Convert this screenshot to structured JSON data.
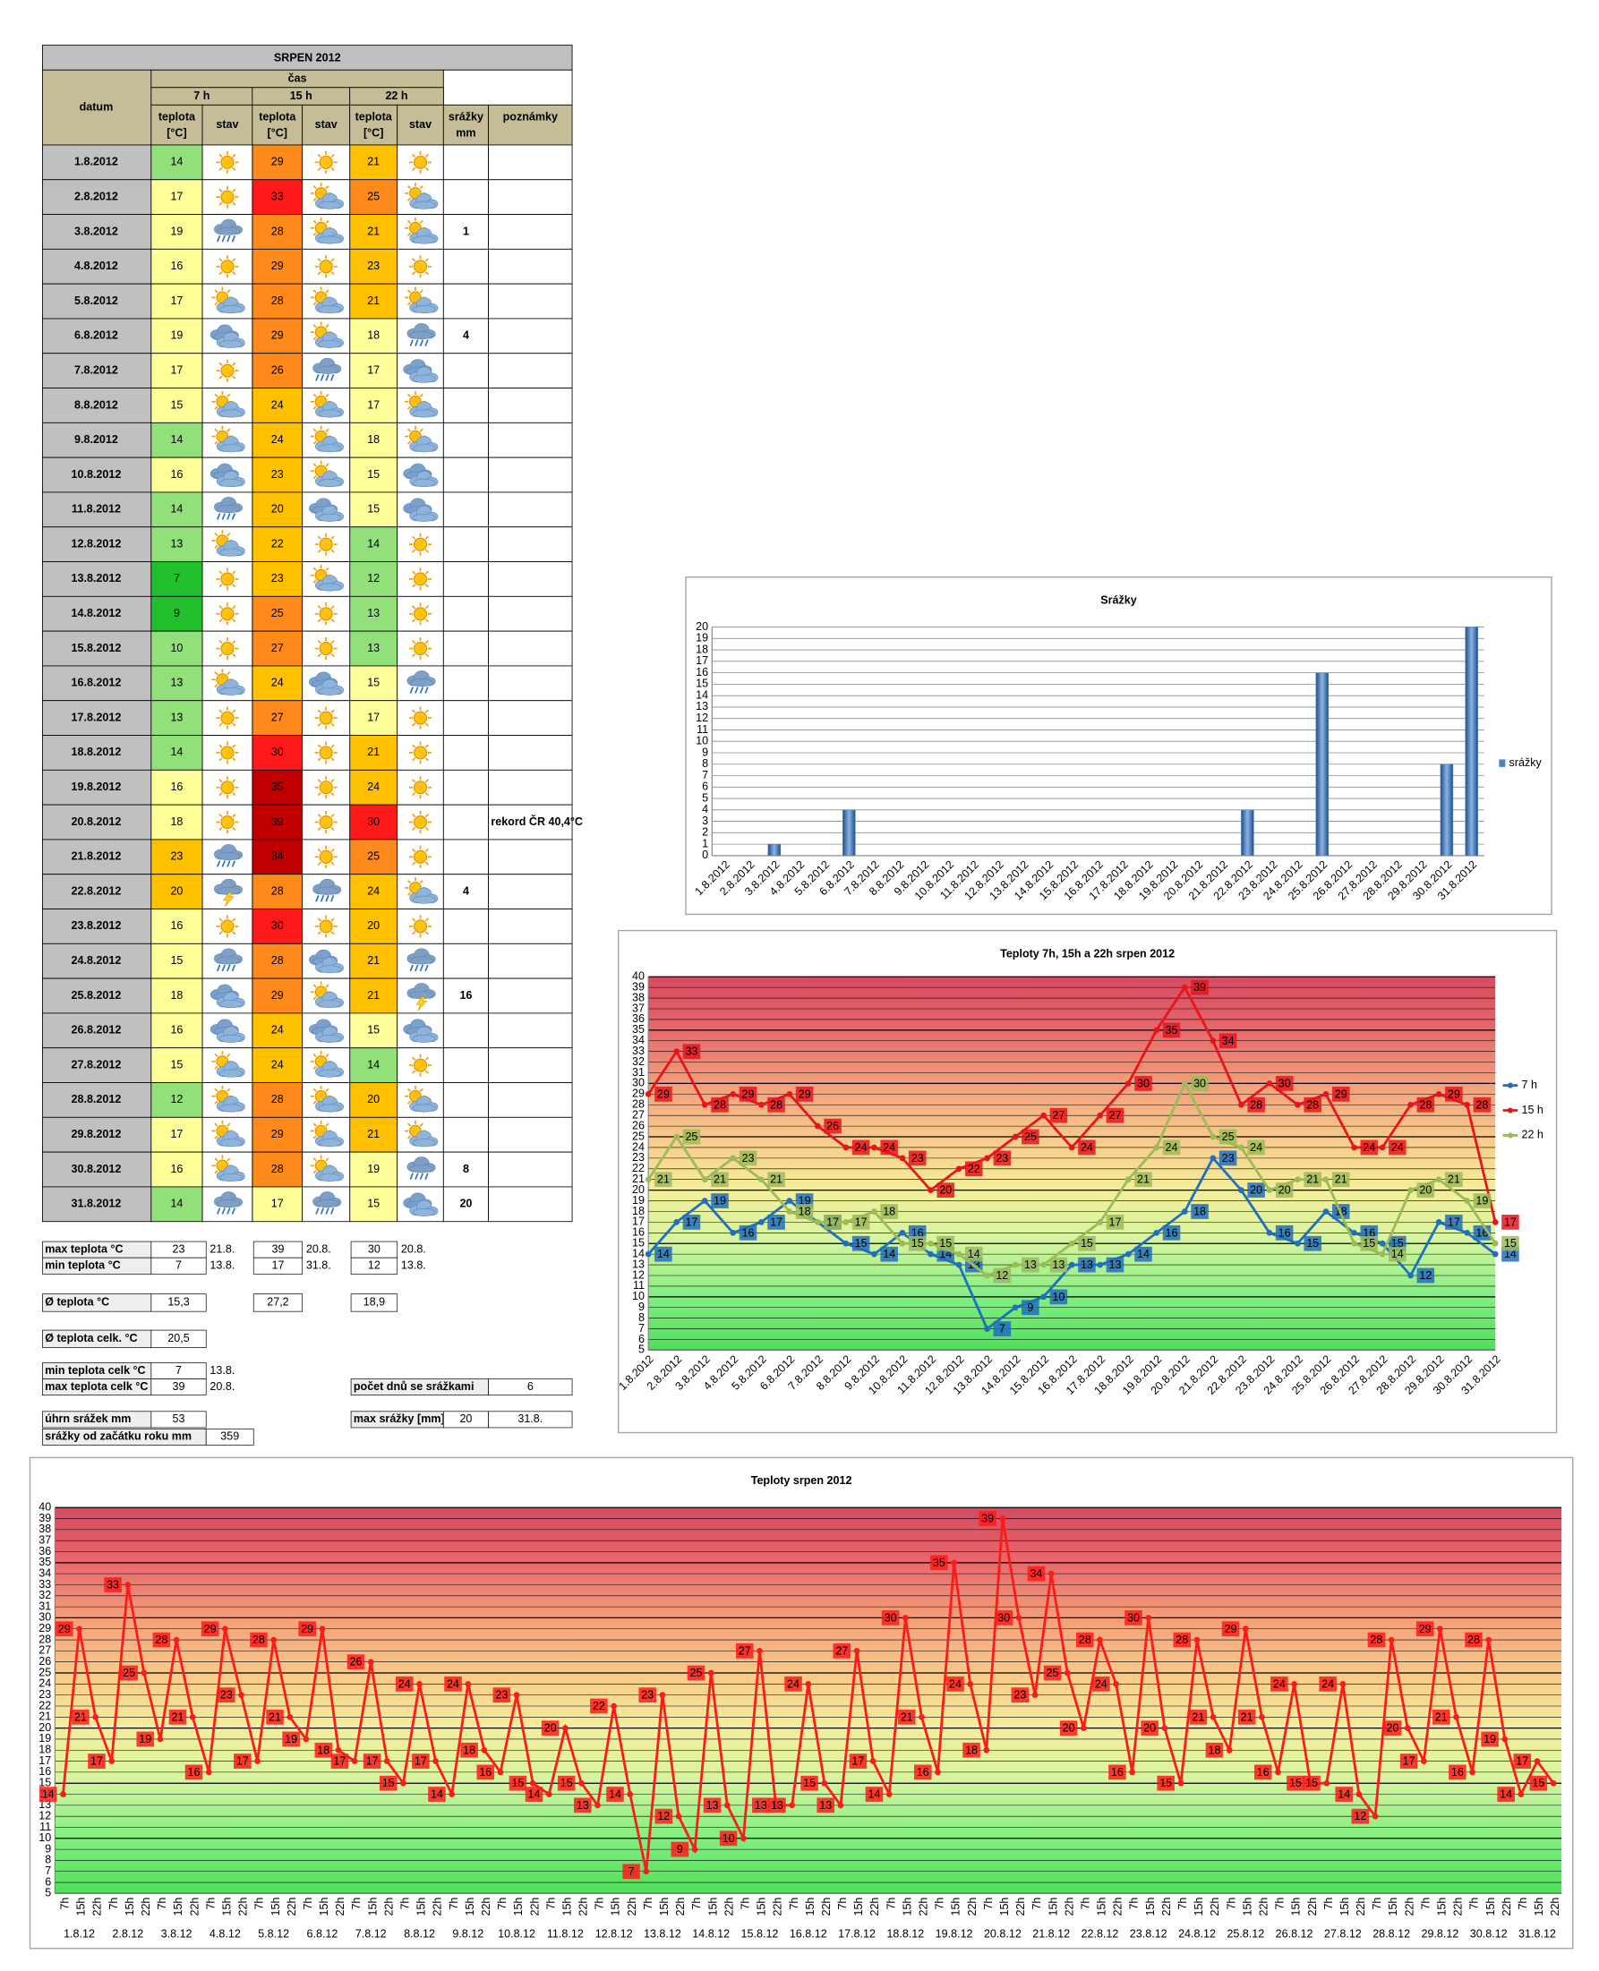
{
  "table": {
    "title": "SRPEN 2012",
    "header": {
      "datum": "datum",
      "cas": "čas",
      "times": [
        "7 h",
        "15 h",
        "22 h"
      ],
      "teplota": "teplota",
      "teplota_unit": "[°C]",
      "stav": "stav",
      "srazky": "srážky",
      "srazky_unit": "mm",
      "poznamky": "poznámky"
    },
    "rows": [
      [
        "1.8.2012",
        14,
        29,
        21,
        null,
        null
      ],
      [
        "2.8.2012",
        17,
        33,
        25,
        null,
        null
      ],
      [
        "3.8.2012",
        19,
        28,
        21,
        1,
        null
      ],
      [
        "4.8.2012",
        16,
        29,
        23,
        null,
        null
      ],
      [
        "5.8.2012",
        17,
        28,
        21,
        null,
        null
      ],
      [
        "6.8.2012",
        19,
        29,
        18,
        4,
        null
      ],
      [
        "7.8.2012",
        17,
        26,
        17,
        null,
        null
      ],
      [
        "8.8.2012",
        15,
        24,
        17,
        null,
        null
      ],
      [
        "9.8.2012",
        14,
        24,
        18,
        null,
        null
      ],
      [
        "10.8.2012",
        16,
        23,
        15,
        null,
        null
      ],
      [
        "11.8.2012",
        14,
        20,
        15,
        null,
        null
      ],
      [
        "12.8.2012",
        13,
        22,
        14,
        null,
        null
      ],
      [
        "13.8.2012",
        7,
        23,
        12,
        null,
        null
      ],
      [
        "14.8.2012",
        9,
        25,
        13,
        null,
        null
      ],
      [
        "15.8.2012",
        10,
        27,
        13,
        null,
        null
      ],
      [
        "16.8.2012",
        13,
        24,
        15,
        null,
        null
      ],
      [
        "17.8.2012",
        13,
        27,
        17,
        null,
        null
      ],
      [
        "18.8.2012",
        14,
        30,
        21,
        null,
        null
      ],
      [
        "19.8.2012",
        16,
        35,
        24,
        null,
        null
      ],
      [
        "20.8.2012",
        18,
        39,
        30,
        null,
        "rekord ČR 40,4°C"
      ],
      [
        "21.8.2012",
        23,
        34,
        25,
        null,
        null
      ],
      [
        "22.8.2012",
        20,
        28,
        24,
        4,
        null
      ],
      [
        "23.8.2012",
        16,
        30,
        20,
        null,
        null
      ],
      [
        "24.8.2012",
        15,
        28,
        21,
        null,
        null
      ],
      [
        "25.8.2012",
        18,
        29,
        21,
        16,
        null
      ],
      [
        "26.8.2012",
        16,
        24,
        15,
        null,
        null
      ],
      [
        "27.8.2012",
        15,
        24,
        14,
        null,
        null
      ],
      [
        "28.8.2012",
        12,
        28,
        20,
        null,
        null
      ],
      [
        "29.8.2012",
        17,
        29,
        21,
        null,
        null
      ],
      [
        "30.8.2012",
        16,
        28,
        19,
        8,
        null
      ],
      [
        "31.8.2012",
        14,
        17,
        15,
        20,
        null
      ]
    ]
  },
  "summary": {
    "max_teplota": {
      "label": "max teplota °C",
      "cells": [
        23,
        "21.8.",
        39,
        "20.8.",
        30,
        "20.8."
      ]
    },
    "min_teplota": {
      "label": "min teplota °C",
      "cells": [
        7,
        "13.8.",
        17,
        "31.8.",
        12,
        "13.8."
      ]
    },
    "prumer": {
      "label": "Ø teplota °C",
      "cells": [
        "15,3",
        "27,2",
        "18,9"
      ]
    },
    "prumer_celk": {
      "label": "Ø teplota celk. °C",
      "value": "20,5"
    },
    "min_celk": {
      "label": "min teplota celk °C",
      "value": 7,
      "date": "13.8."
    },
    "max_celk": {
      "label": "max teplota celk °C",
      "value": 39,
      "date": "20.8."
    },
    "dny_srazky": {
      "label": "počet dnů se srážkami",
      "value": 6
    },
    "uhrn": {
      "label": "úhrn srážek  mm",
      "value": 53
    },
    "max_srazky": {
      "label": "max srážky [mm]",
      "value": 20,
      "date": "31.8."
    },
    "od_zacatku": {
      "label": "srážky od začátku roku mm",
      "value": 359
    }
  },
  "chart_data": [
    {
      "type": "bar",
      "title": "Srážky",
      "categories": [
        "1.8.2012",
        "2.8.2012",
        "3.8.2012",
        "4.8.2012",
        "5.8.2012",
        "6.8.2012",
        "7.8.2012",
        "8.8.2012",
        "9.8.2012",
        "10.8.2012",
        "11.8.2012",
        "12.8.2012",
        "13.8.2012",
        "14.8.2012",
        "15.8.2012",
        "16.8.2012",
        "17.8.2012",
        "18.8.2012",
        "19.8.2012",
        "20.8.2012",
        "21.8.2012",
        "22.8.2012",
        "23.8.2012",
        "24.8.2012",
        "25.8.2012",
        "26.8.2012",
        "27.8.2012",
        "28.8.2012",
        "29.8.2012",
        "30.8.2012",
        "31.8.2012"
      ],
      "series": [
        {
          "name": "srážky",
          "color": "#4f81bd",
          "values": [
            null,
            null,
            1,
            null,
            null,
            4,
            null,
            null,
            null,
            null,
            null,
            null,
            null,
            null,
            null,
            null,
            null,
            null,
            null,
            null,
            null,
            4,
            null,
            null,
            16,
            null,
            null,
            null,
            null,
            8,
            20
          ]
        }
      ],
      "ylim": [
        0,
        20
      ],
      "yticks": [
        0,
        1,
        2,
        3,
        4,
        5,
        6,
        7,
        8,
        9,
        10,
        11,
        12,
        13,
        14,
        15,
        16,
        17,
        18,
        19,
        20
      ],
      "grid": true,
      "legend": "right"
    },
    {
      "type": "line",
      "title": "Teploty 7h, 15h a 22h srpen 2012",
      "categories": [
        "1.8.2012",
        "2.8.2012",
        "3.8.2012",
        "4.8.2012",
        "5.8.2012",
        "6.8.2012",
        "7.8.2012",
        "8.8.2012",
        "9.8.2012",
        "10.8.2012",
        "11.8.2012",
        "12.8.2012",
        "13.8.2012",
        "14.8.2012",
        "15.8.2012",
        "16.8.2012",
        "17.8.2012",
        "18.8.2012",
        "19.8.2012",
        "20.8.2012",
        "21.8.2012",
        "22.8.2012",
        "23.8.2012",
        "24.8.2012",
        "25.8.2012",
        "26.8.2012",
        "27.8.2012",
        "28.8.2012",
        "29.8.2012",
        "30.8.2012",
        "31.8.2012"
      ],
      "series": [
        {
          "name": "7 h",
          "color": "#1f6fbf",
          "values": [
            14,
            17,
            19,
            16,
            17,
            19,
            17,
            15,
            14,
            16,
            14,
            13,
            7,
            9,
            10,
            13,
            13,
            14,
            16,
            18,
            23,
            20,
            16,
            15,
            18,
            16,
            15,
            12,
            17,
            16,
            14
          ]
        },
        {
          "name": "15 h",
          "color": "#e8141c",
          "values": [
            29,
            33,
            28,
            29,
            28,
            29,
            26,
            24,
            24,
            23,
            20,
            22,
            23,
            25,
            27,
            24,
            27,
            30,
            35,
            39,
            34,
            28,
            30,
            28,
            29,
            24,
            24,
            28,
            29,
            28,
            17
          ]
        },
        {
          "name": "22 h",
          "color": "#9bbb59",
          "values": [
            21,
            25,
            21,
            23,
            21,
            18,
            17,
            17,
            18,
            15,
            15,
            14,
            12,
            13,
            13,
            15,
            17,
            21,
            24,
            30,
            25,
            24,
            20,
            21,
            21,
            15,
            14,
            20,
            21,
            19,
            15
          ]
        }
      ],
      "ylim": [
        5,
        40
      ],
      "yticks": [
        5,
        6,
        7,
        8,
        9,
        10,
        11,
        12,
        13,
        14,
        15,
        16,
        17,
        18,
        19,
        20,
        21,
        22,
        23,
        24,
        25,
        26,
        27,
        28,
        29,
        30,
        31,
        32,
        33,
        34,
        35,
        36,
        37,
        38,
        39,
        40
      ],
      "grid": true,
      "legend": "right"
    },
    {
      "type": "line",
      "title": "Teploty srpen 2012",
      "categories": [
        "7h",
        "15h",
        "22h",
        "7h",
        "15h",
        "22h",
        "7h",
        "15h",
        "22h",
        "7h",
        "15h",
        "22h",
        "7h",
        "15h",
        "22h",
        "7h",
        "15h",
        "22h",
        "7h",
        "15h",
        "22h",
        "7h",
        "15h",
        "22h",
        "7h",
        "15h",
        "22h",
        "7h",
        "15h",
        "22h",
        "7h",
        "15h",
        "22h",
        "7h",
        "15h",
        "22h",
        "7h",
        "15h",
        "22h",
        "7h",
        "15h",
        "22h",
        "7h",
        "15h",
        "22h",
        "7h",
        "15h",
        "22h",
        "7h",
        "15h",
        "22h",
        "7h",
        "15h",
        "22h",
        "7h",
        "15h",
        "22h",
        "7h",
        "15h",
        "22h",
        "7h",
        "15h",
        "22h",
        "7h",
        "15h",
        "22h",
        "7h",
        "15h",
        "22h",
        "7h",
        "15h",
        "22h",
        "7h",
        "15h",
        "22h",
        "7h",
        "15h",
        "22h",
        "7h",
        "15h",
        "22h",
        "7h",
        "15h",
        "22h",
        "7h",
        "15h",
        "22h",
        "7h",
        "15h",
        "22h",
        "7h",
        "15h",
        "22h"
      ],
      "groups": [
        "1.8.12",
        "2.8.12",
        "3.8.12",
        "4.8.12",
        "5.8.12",
        "6.8.12",
        "7.8.12",
        "8.8.12",
        "9.8.12",
        "10.8.12",
        "11.8.12",
        "12.8.12",
        "13.8.12",
        "14.8.12",
        "15.8.12",
        "16.8.12",
        "17.8.12",
        "18.8.12",
        "19.8.12",
        "20.8.12",
        "21.8.12",
        "22.8.12",
        "23.8.12",
        "24.8.12",
        "25.8.12",
        "26.8.12",
        "27.8.12",
        "28.8.12",
        "29.8.12",
        "30.8.12",
        "31.8.12"
      ],
      "color": "#ff1a1a",
      "values": [
        14,
        29,
        21,
        17,
        33,
        25,
        19,
        28,
        21,
        16,
        29,
        23,
        17,
        28,
        21,
        19,
        29,
        18,
        17,
        26,
        17,
        15,
        24,
        17,
        14,
        24,
        18,
        16,
        23,
        15,
        14,
        20,
        15,
        13,
        22,
        14,
        7,
        23,
        12,
        9,
        25,
        13,
        10,
        27,
        13,
        13,
        24,
        15,
        13,
        27,
        17,
        14,
        30,
        21,
        16,
        35,
        24,
        18,
        39,
        30,
        23,
        34,
        25,
        20,
        28,
        24,
        16,
        30,
        20,
        15,
        28,
        21,
        18,
        29,
        21,
        16,
        24,
        15,
        15,
        24,
        14,
        12,
        28,
        20,
        17,
        29,
        21,
        16,
        28,
        19,
        14,
        17,
        15
      ],
      "ylim": [
        5,
        40
      ],
      "yticks": [
        5,
        6,
        7,
        8,
        9,
        10,
        11,
        12,
        13,
        14,
        15,
        16,
        17,
        18,
        19,
        20,
        21,
        22,
        23,
        24,
        25,
        26,
        27,
        28,
        29,
        30,
        31,
        32,
        33,
        34,
        35,
        36,
        37,
        38,
        39,
        40
      ],
      "grid": true
    }
  ]
}
